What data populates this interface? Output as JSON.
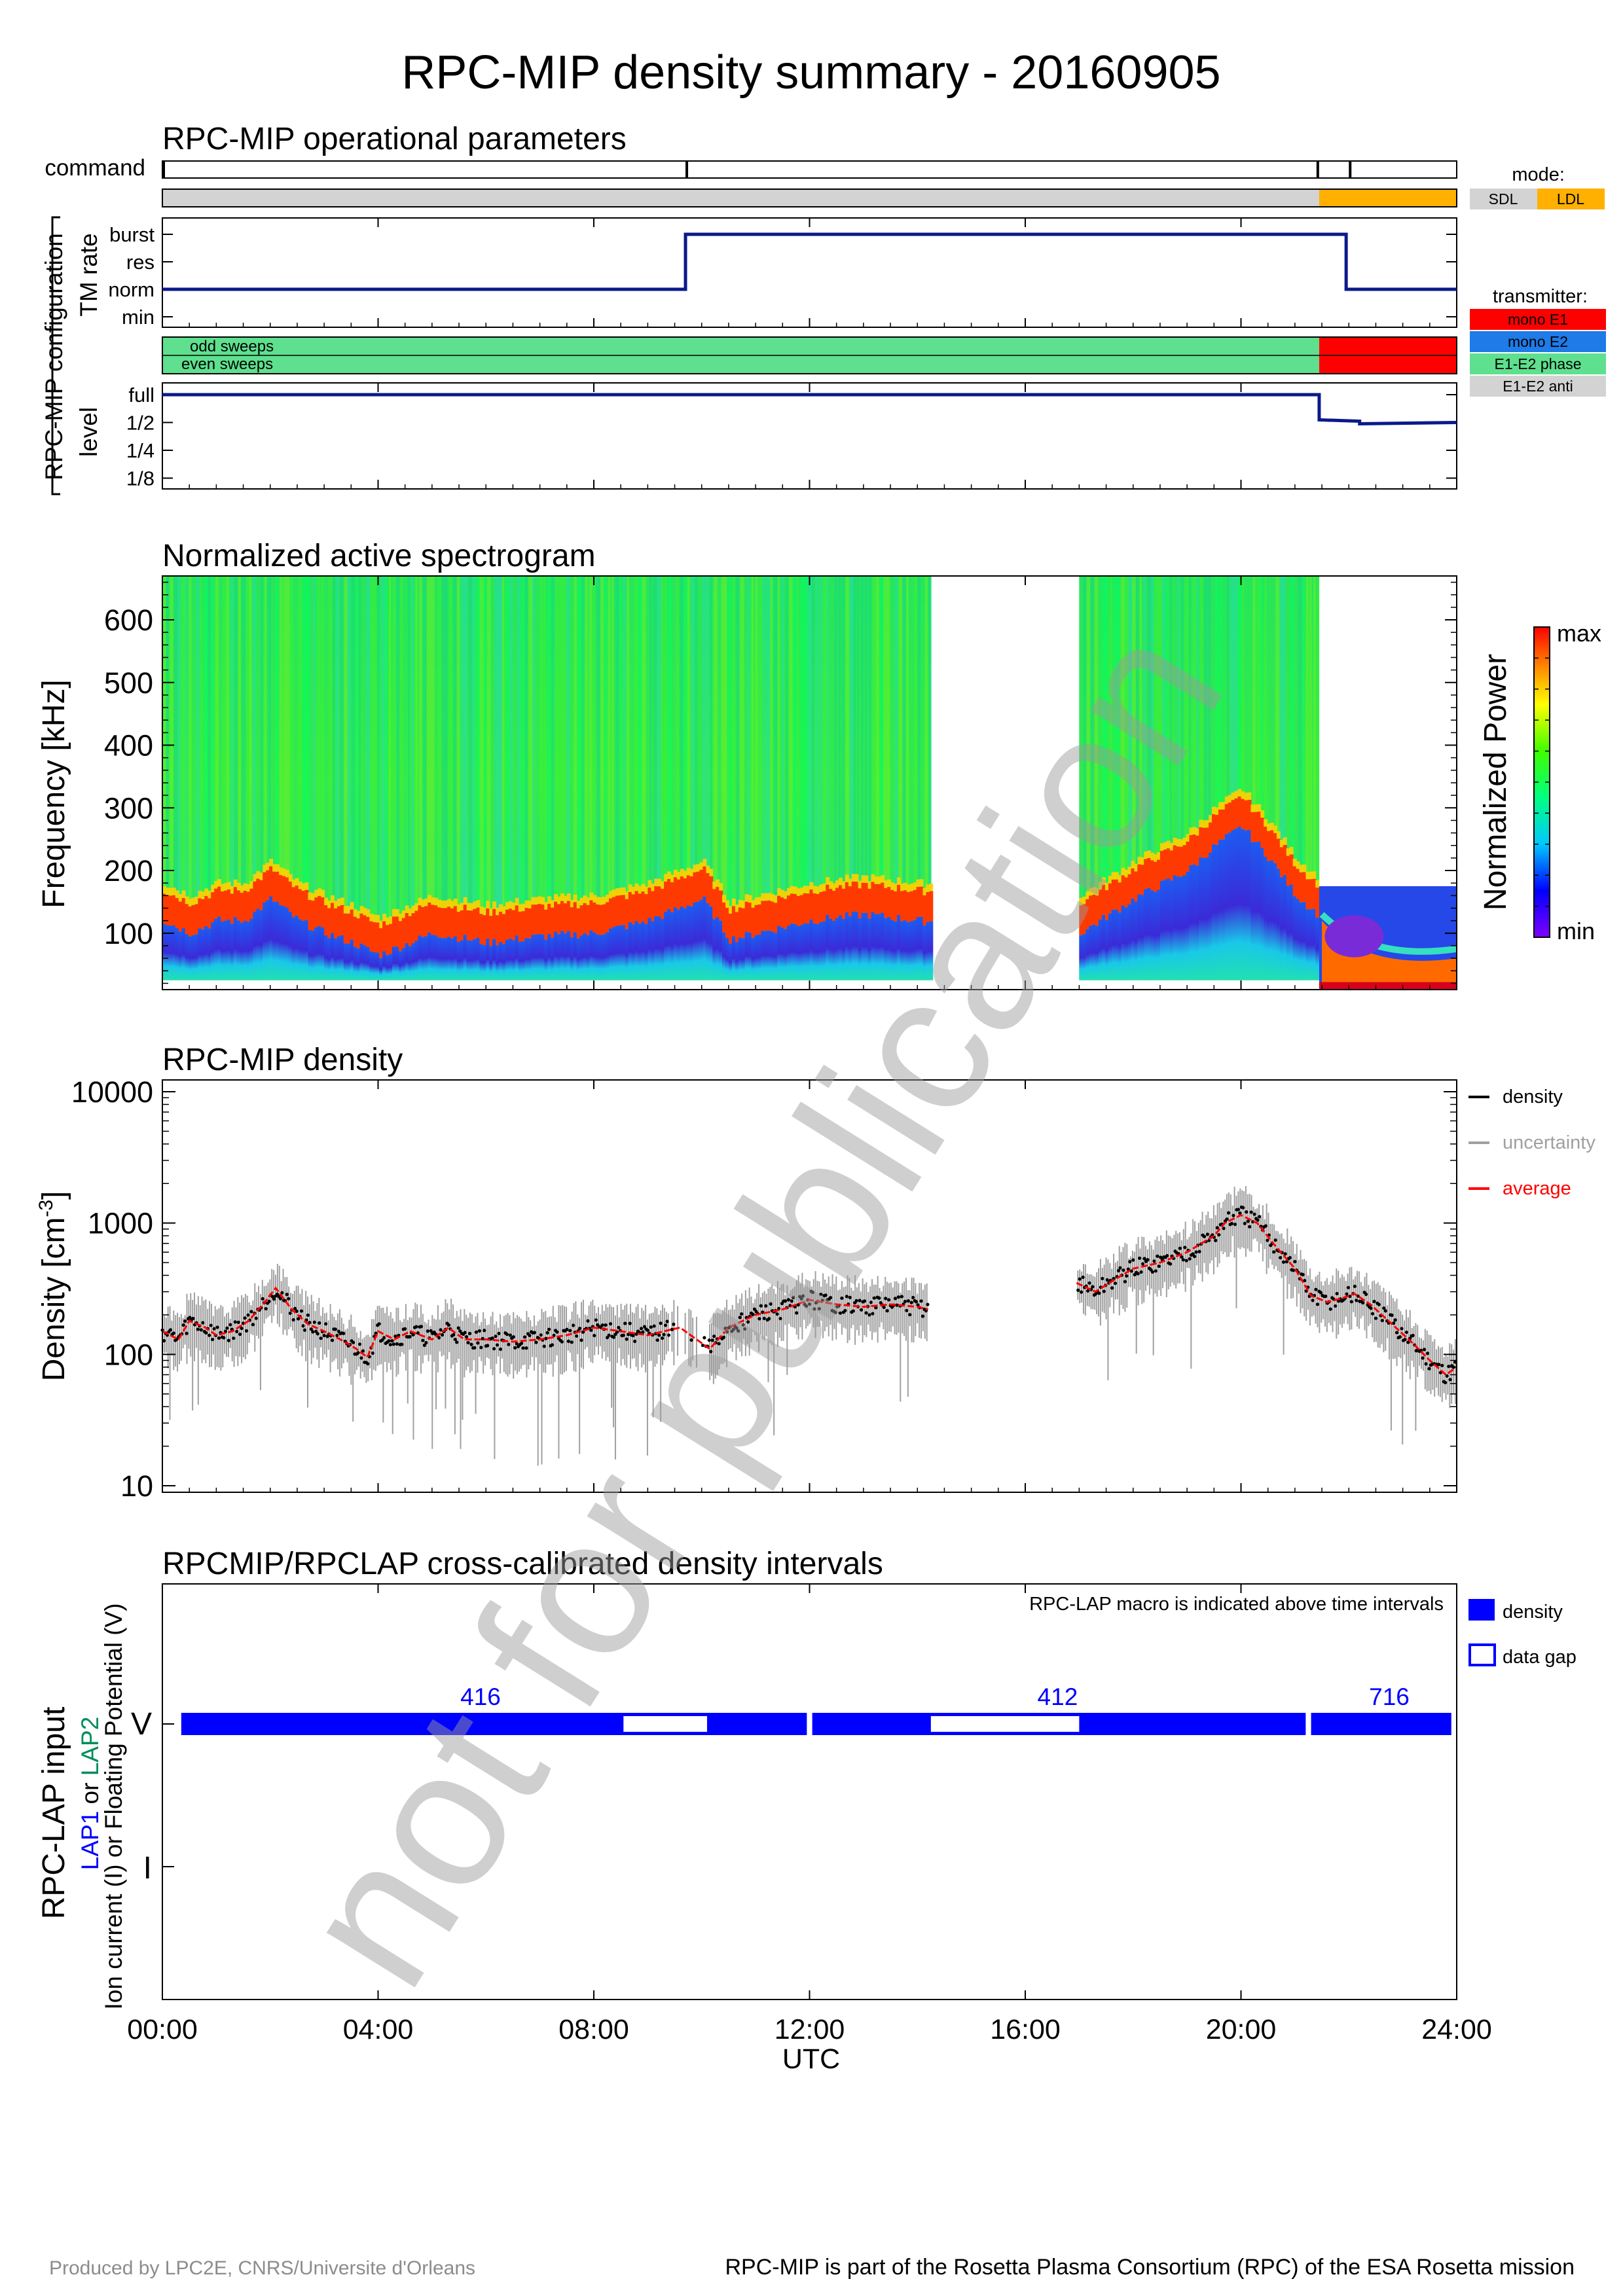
{
  "page": {
    "title": "RPC-MIP density summary - 20160905",
    "footer_left": "Produced by LPC2E, CNRS/Universite d'Orleans",
    "footer_right": "RPC-MIP is part of the Rosetta Plasma Consortium (RPC) of the ESA Rosetta mission",
    "watermark": "not for publication",
    "x_axis": {
      "label": "UTC",
      "ticks": [
        "00:00",
        "04:00",
        "08:00",
        "12:00",
        "16:00",
        "20:00",
        "24:00"
      ]
    }
  },
  "ops": {
    "title": "RPC-MIP operational parameters",
    "command_label": "command",
    "group_label": "RPC-MIP configuration",
    "tm_label": "TM rate",
    "level_label": "level",
    "tm_ticks": [
      "burst",
      "res",
      "norm",
      "min"
    ],
    "level_ticks": [
      "full",
      "1/2",
      "1/4",
      "1/8"
    ],
    "odd_label": "odd sweeps",
    "even_label": "even sweeps",
    "mode_title": "mode:",
    "mode_items": [
      {
        "label": "SDL",
        "color": "#d3d3d3"
      },
      {
        "label": "LDL",
        "color": "#ffb000"
      }
    ],
    "transmitter_title": "transmitter:",
    "transmitter_items": [
      {
        "label": "mono E1",
        "color": "#ff0000"
      },
      {
        "label": "mono E2",
        "color": "#1e7be8"
      },
      {
        "label": "E1-E2 phase",
        "color": "#5ee08e"
      },
      {
        "label": "E1-E2 anti",
        "color": "#d3d3d3"
      }
    ]
  },
  "spec": {
    "title": "Normalized active spectrogram",
    "ylabel": "Frequency [kHz]",
    "yticks": [
      "100",
      "200",
      "300",
      "400",
      "500",
      "600"
    ],
    "cbar_label": "Normalized Power",
    "cbar_max": "max",
    "cbar_min": "min"
  },
  "dens": {
    "title": "RPC-MIP density",
    "ylabel": "Density [cm",
    "ylabel_sup": "-3",
    "ylabel_end": "]",
    "yticks": [
      "10",
      "100",
      "1000",
      "10000"
    ],
    "legend": [
      {
        "label": "density",
        "color": "#000000"
      },
      {
        "label": "uncertainty",
        "color": "#a0a0a0"
      },
      {
        "label": "average",
        "color": "#ff0000"
      }
    ]
  },
  "lap": {
    "title": "RPCMIP/RPCLAP cross-calibrated density intervals",
    "note": "RPC-LAP macro is indicated above time intervals",
    "ylabel": "RPC-LAP input",
    "ylabel2_a": "LAP1",
    "ylabel2_b": "or",
    "ylabel2_c": "LAP2",
    "ylabel3": "Ion current (I) or Floating Potential (V)",
    "row_v": "V",
    "row_i": "I",
    "legend_density": "density",
    "legend_gap": "data gap",
    "macros": [
      {
        "label": "416",
        "t": 5.9
      },
      {
        "label": "412",
        "t": 16.6
      },
      {
        "label": "716",
        "t": 22.75
      }
    ]
  },
  "chart_data": [
    {
      "type": "line",
      "name": "command",
      "x_unit": "hour UTC",
      "command_times": [
        0.0,
        9.7,
        21.4,
        22.0
      ],
      "mode": [
        {
          "start": 0.0,
          "end": 21.45,
          "value": "SDL"
        },
        {
          "start": 21.45,
          "end": 24.0,
          "value": "LDL"
        }
      ]
    },
    {
      "type": "line",
      "name": "TM rate",
      "x": [
        0.0,
        9.7,
        9.7,
        21.95,
        21.95,
        24.0
      ],
      "y": [
        "norm",
        "norm",
        "burst",
        "burst",
        "norm",
        "norm"
      ],
      "transmitter": [
        {
          "start": 0.0,
          "end": 21.45,
          "value": "E1-E2 phase"
        },
        {
          "start": 21.45,
          "end": 24.0,
          "value": "mono E1"
        }
      ]
    },
    {
      "type": "line",
      "name": "level",
      "x": [
        0.0,
        21.45,
        21.45,
        22.2,
        22.2,
        24.0
      ],
      "y": [
        "full",
        "full",
        "1/2",
        "1/2",
        "1/2",
        "1/2"
      ]
    },
    {
      "type": "heatmap",
      "title": "Normalized active spectrogram",
      "ylabel": "Frequency [kHz]",
      "ylim": [
        10,
        670
      ],
      "intervals": [
        {
          "start": 0.0,
          "end": 14.25,
          "fmax": 670,
          "fmin": 25
        },
        {
          "start": 17.0,
          "end": 21.45,
          "fmax": 670,
          "fmin": 25
        },
        {
          "start": 21.45,
          "end": 24.0,
          "fmax": 175,
          "fmin": 10
        }
      ],
      "plasma_line_khz": {
        "x": [
          0,
          0.5,
          1,
          1.5,
          2,
          2.5,
          3,
          3.5,
          4,
          5,
          6,
          7,
          8,
          9,
          10,
          10.5,
          11,
          12,
          13,
          14,
          17,
          18,
          19,
          19.5,
          20,
          20.5,
          21,
          21.4
        ],
        "y": [
          150,
          130,
          150,
          150,
          185,
          150,
          130,
          115,
          95,
          130,
          115,
          125,
          130,
          150,
          185,
          120,
          130,
          150,
          160,
          150,
          130,
          185,
          230,
          270,
          300,
          250,
          190,
          160
        ]
      }
    },
    {
      "type": "scatter",
      "title": "RPC-MIP density",
      "ylabel": "Density [cm-3]",
      "yscale": "log",
      "ylim": [
        10,
        10000
      ],
      "xlim": [
        0,
        24
      ],
      "series": [
        {
          "name": "average",
          "x": [
            0.0,
            0.3,
            0.5,
            0.8,
            1.0,
            1.3,
            1.6,
            1.9,
            2.1,
            2.4,
            2.7,
            3.0,
            3.3,
            3.6,
            3.8,
            4.0,
            4.3,
            4.6,
            5.0,
            5.3,
            5.6,
            6.0,
            6.5,
            7.0,
            7.5,
            8.0,
            8.5,
            9.0,
            9.3,
            9.6,
            10.15,
            10.5,
            11.0,
            11.5,
            12.0,
            12.5,
            13.0,
            13.5,
            14.0,
            14.2,
            16.95,
            17.3,
            17.7,
            18.0,
            18.5,
            19.0,
            19.5,
            19.7,
            20.0,
            20.3,
            20.6,
            21.0,
            21.3,
            21.6,
            21.9,
            22.1,
            22.4,
            22.8,
            23.2,
            23.5,
            23.8,
            24.0
          ],
          "y": [
            150,
            130,
            180,
            160,
            140,
            150,
            180,
            250,
            320,
            220,
            170,
            150,
            130,
            110,
            95,
            150,
            130,
            150,
            130,
            160,
            130,
            130,
            125,
            130,
            140,
            160,
            150,
            140,
            150,
            160,
            110,
            160,
            200,
            220,
            260,
            240,
            230,
            240,
            230,
            220,
            350,
            300,
            380,
            450,
            500,
            600,
            800,
            1000,
            1150,
            1000,
            700,
            450,
            280,
            250,
            270,
            290,
            240,
            170,
            120,
            90,
            70,
            80
          ]
        }
      ]
    }
  ]
}
